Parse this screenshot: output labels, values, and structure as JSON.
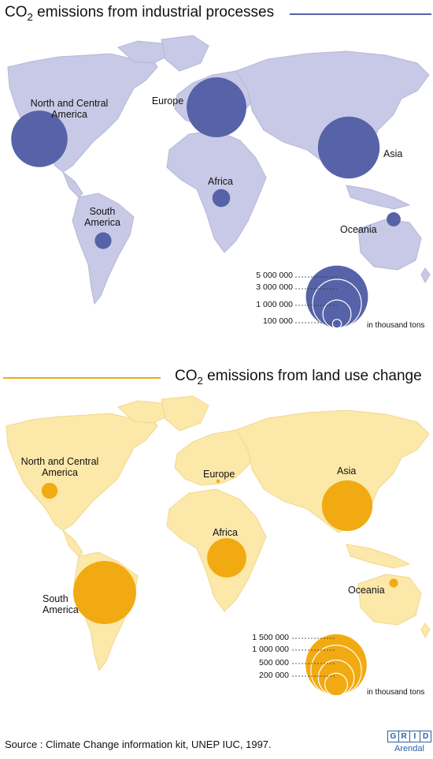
{
  "map1": {
    "title_prefix": "CO",
    "title_sub": "2",
    "title_suffix": " emissions from industrial processes",
    "land_color": "#c8c9e6",
    "bubble_color": "#5663a8",
    "regions": [
      {
        "id": "north-central-america",
        "label": "North and Central\nAmerica",
        "value": 4000000
      },
      {
        "id": "europe",
        "label": "Europe",
        "value": 4500000
      },
      {
        "id": "asia",
        "label": "Asia",
        "value": 4800000
      },
      {
        "id": "africa",
        "label": "Africa",
        "value": 400000
      },
      {
        "id": "south-america",
        "label": "South\nAmerica",
        "value": 350000
      },
      {
        "id": "oceania",
        "label": "Oceania",
        "value": 250000
      }
    ],
    "legend": {
      "values": [
        "5 000 000",
        "3 000 000",
        "1 000 000",
        "100 000"
      ],
      "unit": "in thousand tons"
    }
  },
  "map2": {
    "title_prefix": "CO",
    "title_sub": "2",
    "title_suffix": " emissions from land use change",
    "land_color": "#fce8a8",
    "bubble_color": "#f2aa12",
    "regions": [
      {
        "id": "north-central-america",
        "label": "North and Central\nAmerica",
        "value": 100000
      },
      {
        "id": "europe",
        "label": "Europe",
        "value": 2000
      },
      {
        "id": "asia",
        "label": "Asia",
        "value": 1000000
      },
      {
        "id": "africa",
        "label": "Africa",
        "value": 600000
      },
      {
        "id": "south-america",
        "label": "South\nAmerica",
        "value": 1550000
      },
      {
        "id": "oceania",
        "label": "Oceania",
        "value": 30000
      }
    ],
    "legend": {
      "values": [
        "1 500 000",
        "1 000 000",
        "500 000",
        "200 000"
      ],
      "unit": "in thousand tons"
    }
  },
  "footer": {
    "source": "Source : Climate Change information kit, UNEP IUC, 1997.",
    "logo_letters": [
      "G",
      "R",
      "I",
      "D"
    ],
    "logo_sub": "Arendal"
  }
}
